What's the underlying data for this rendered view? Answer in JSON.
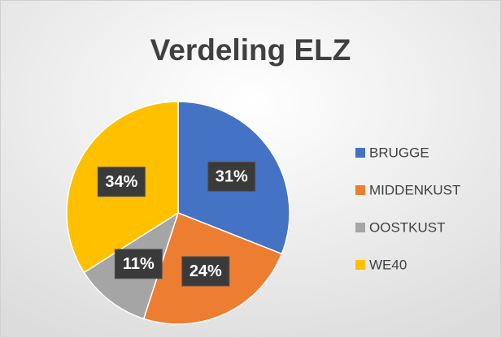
{
  "chart_data": {
    "type": "pie",
    "title": "Verdeling ELZ",
    "categories": [
      "BRUGGE",
      "MIDDENKUST",
      "OOSTKUST",
      "WE40"
    ],
    "values": [
      31,
      24,
      11,
      34
    ],
    "value_labels": [
      "31%",
      "24%",
      "11%",
      "34%"
    ],
    "colors": [
      "#4472c4",
      "#ed7d31",
      "#a5a5a5",
      "#ffc000"
    ],
    "legend": "right"
  }
}
